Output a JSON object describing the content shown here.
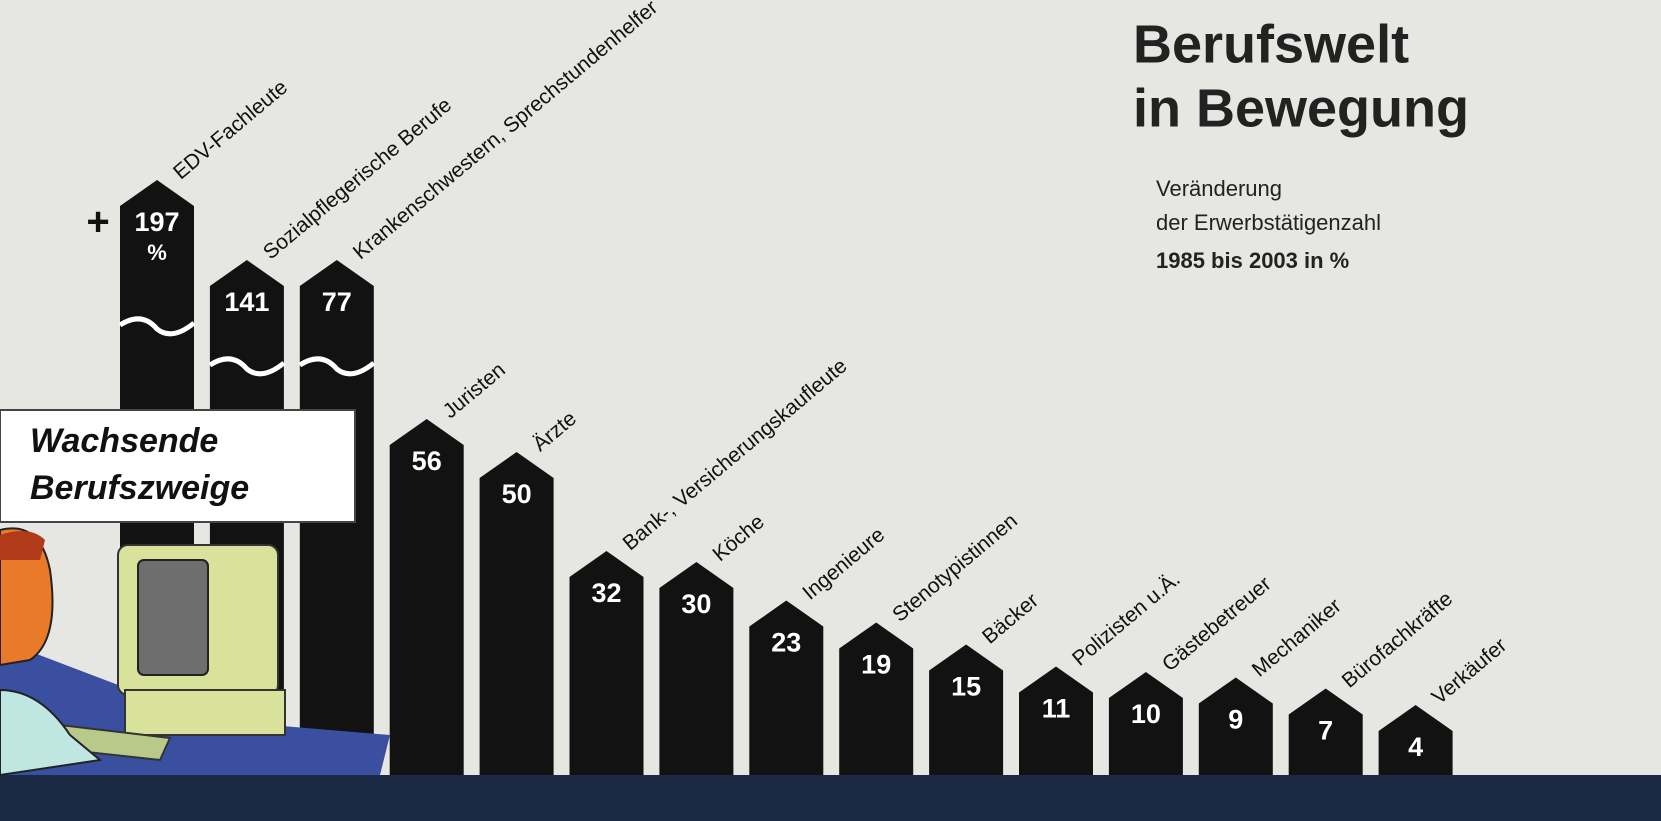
{
  "chart_data": {
    "type": "bar",
    "title": [
      "Berufswelt",
      "in Bewegung"
    ],
    "subtitle": [
      "Veränderung",
      "der Erwerbstätigenzahl",
      "1985 bis 2003 in %"
    ],
    "annotation": [
      "Wachsende",
      "Berufszweige"
    ],
    "categories": [
      "EDV-Fachleute",
      "Sozialpflegerische Berufe",
      "Krankenschwestern, Sprechstundenhelfer",
      "Juristen",
      "Ärzte",
      "Bank-, Versicherungskaufleute",
      "Köche",
      "Ingenieure",
      "Stenotypistinnen",
      "Bäcker",
      "Polizisten u.Ä.",
      "Gästebetreuer",
      "Mechaniker",
      "Bürofachkräfte",
      "Verkäufer"
    ],
    "values": [
      197,
      141,
      77,
      56,
      50,
      32,
      30,
      23,
      19,
      15,
      11,
      10,
      9,
      7,
      4
    ],
    "value_labels": [
      "+197 %",
      "141",
      "77",
      "56",
      "50",
      "32",
      "30",
      "23",
      "19",
      "15",
      "11",
      "10",
      "9",
      "7",
      "4"
    ],
    "color": "#121212"
  }
}
